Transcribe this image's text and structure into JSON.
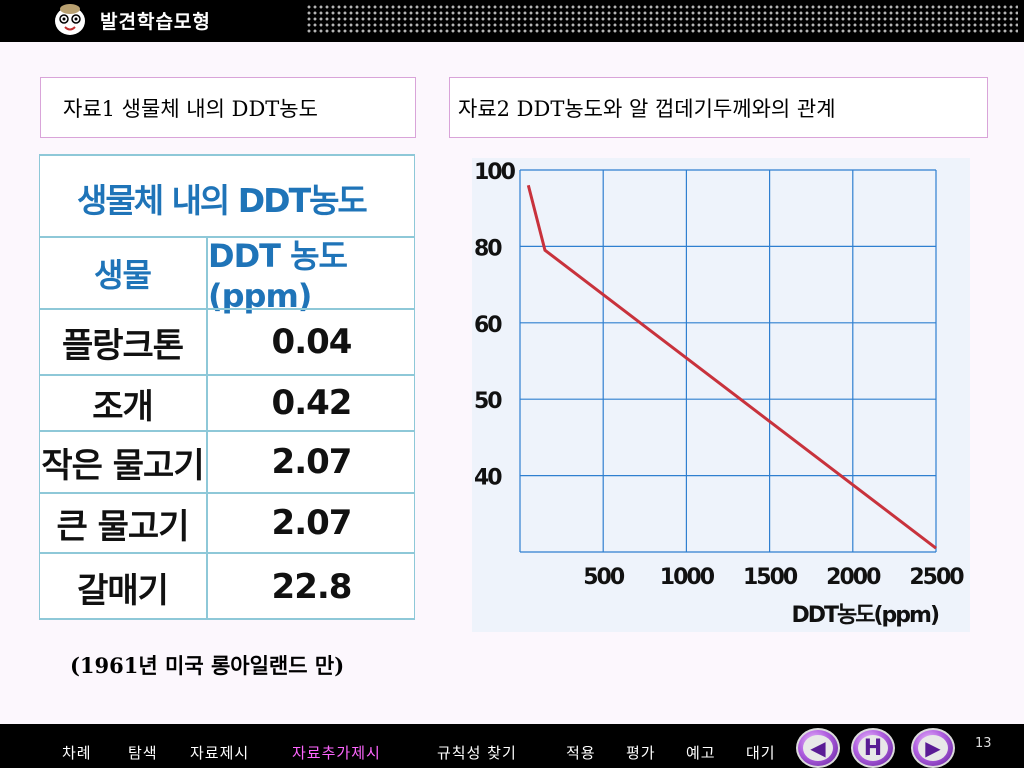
{
  "app": {
    "title": "발견학습모형"
  },
  "section1": {
    "title": "자료1 생물체 내의 DDT농도",
    "table": {
      "title": "생물체 내의 DDT농도",
      "headers": [
        "생물",
        "DDT 농도(ppm)"
      ],
      "rows": [
        [
          "플랑크톤",
          "0.04"
        ],
        [
          "조개",
          "0.42"
        ],
        [
          "작은 물고기",
          "2.07"
        ],
        [
          "큰 물고기",
          "2.07"
        ],
        [
          "갈매기",
          "22.8"
        ]
      ]
    },
    "footnote": "(1961년 미국 롱아일랜드 만)"
  },
  "section2": {
    "title": "자료2 DDT농도와 알 껍데기두께와의 관계"
  },
  "chart_data": {
    "type": "line",
    "xlabel": "DDT농도(ppm)",
    "ylabel": "",
    "x_ticks": [
      "500",
      "1000",
      "1500",
      "2000",
      "2500"
    ],
    "y_ticks": [
      "40",
      "50",
      "60",
      "80",
      "100"
    ],
    "series": [
      {
        "x": [
          50,
          150,
          2500
        ],
        "y": [
          96,
          79,
          1
        ],
        "color": "#c8323c"
      }
    ]
  },
  "nav": {
    "items": [
      "차례",
      "탐색",
      "자료제시",
      "자료추가제시",
      "규칙성 찾기",
      "적용",
      "평가",
      "예고",
      "대기"
    ],
    "active": "자료추가제시",
    "buttons": {
      "prev": "◀",
      "home": "H",
      "next": "▶"
    },
    "page_number": "13"
  }
}
